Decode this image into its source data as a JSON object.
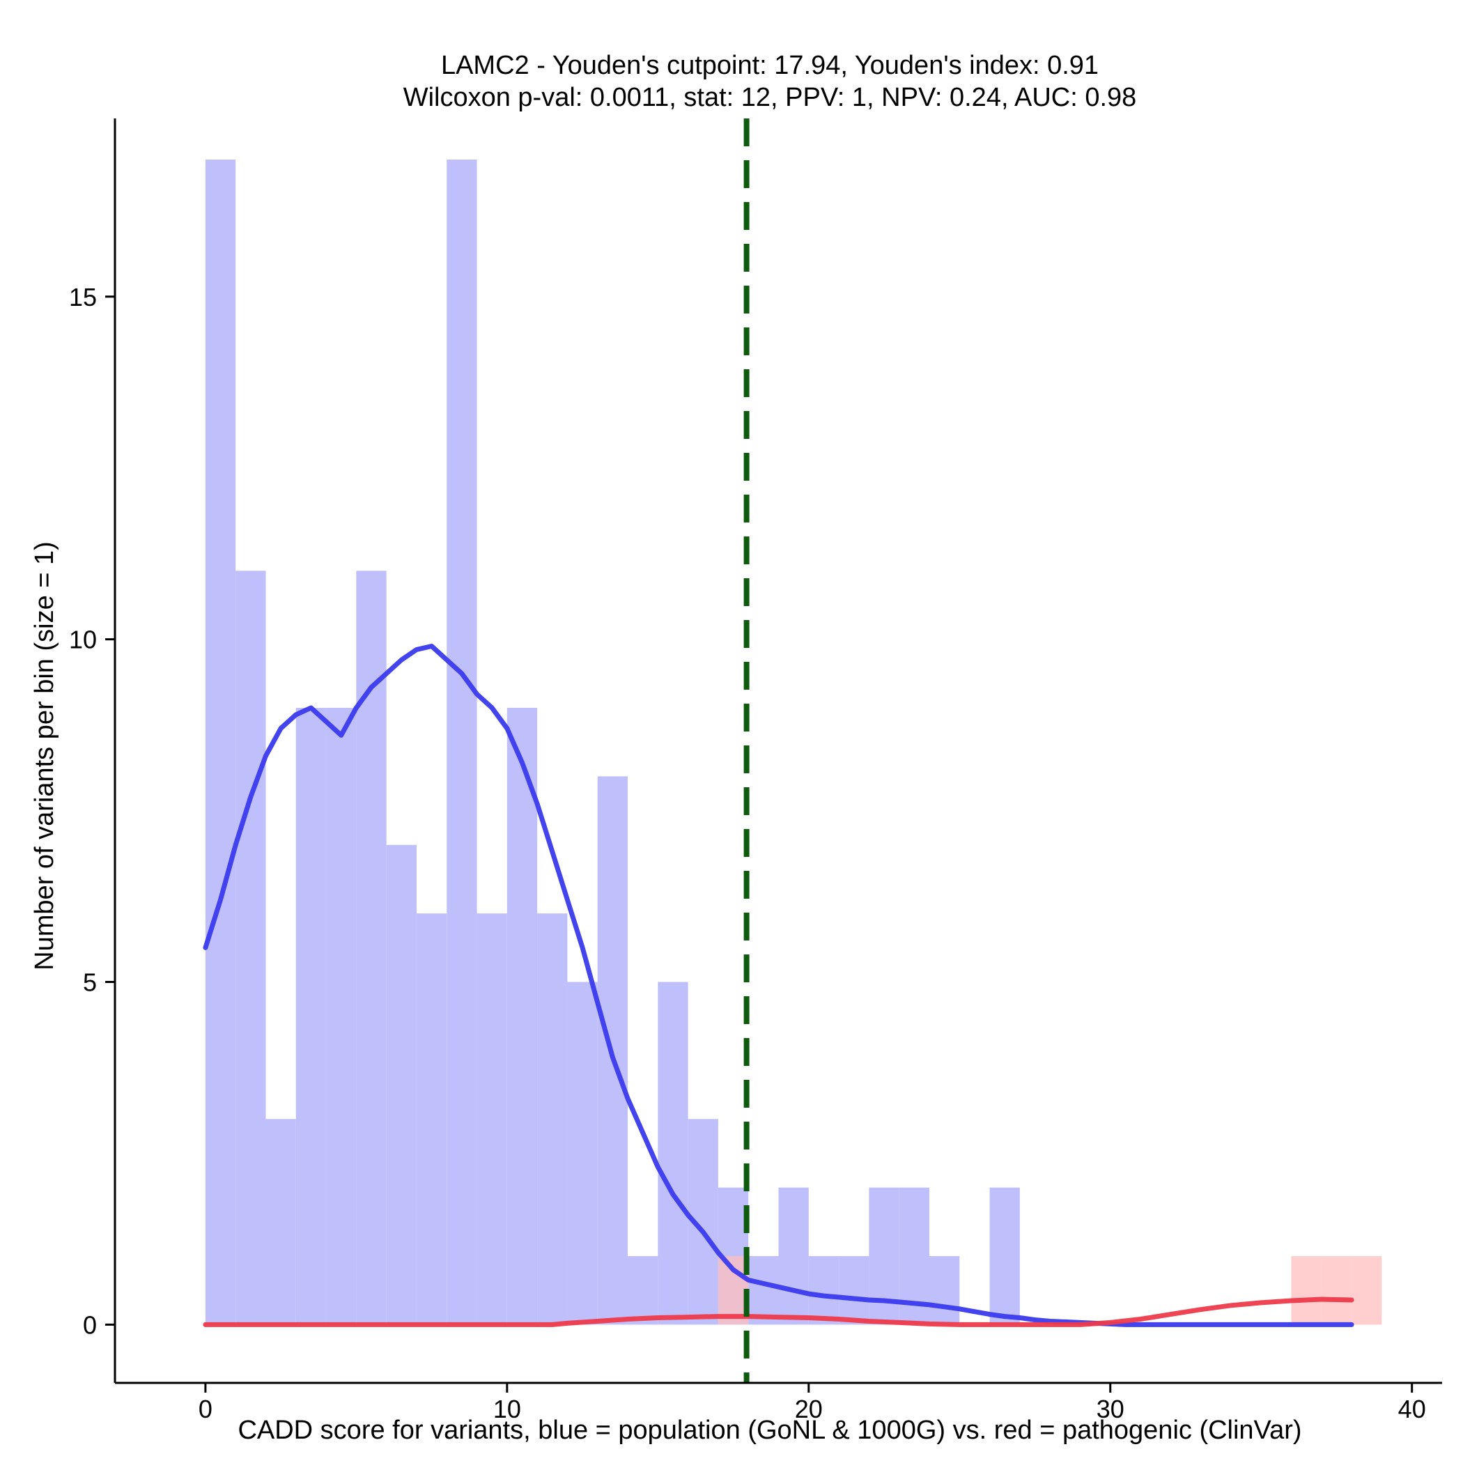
{
  "chart_data": {
    "type": "bar",
    "title_line1": "LAMC2 - Youden's cutpoint: 17.94, Youden's index: 0.91",
    "title_line2": "Wilcoxon p-val: 0.0011, stat: 12, PPV: 1, NPV: 0.24, AUC: 0.98",
    "xlabel": "CADD score for variants, blue = population (GoNL & 1000G) vs. red = pathogenic (ClinVar)",
    "ylabel": "Number of variants per bin (size = 1)",
    "xlim": [
      -3,
      41
    ],
    "ylim": [
      -0.85,
      17.6
    ],
    "x_ticks": [
      0,
      10,
      20,
      30,
      40
    ],
    "y_ticks": [
      0,
      5,
      10,
      15
    ],
    "bin_width": 1,
    "cutpoint": 17.94,
    "colors": {
      "population_bar": "#bfbffb",
      "pathogenic_bar": "#ffbfbf",
      "population_line": "#3a3aee",
      "pathogenic_line": "#ee3a4a",
      "cutpoint_line": "#0e5a0e"
    },
    "series": [
      {
        "bins": [
          {
            "x": 0,
            "count": 17
          },
          {
            "x": 1,
            "count": 11
          },
          {
            "x": 2,
            "count": 3
          },
          {
            "x": 3,
            "count": 9
          },
          {
            "x": 4,
            "count": 9
          },
          {
            "x": 5,
            "count": 11
          },
          {
            "x": 6,
            "count": 7
          },
          {
            "x": 7,
            "count": 6
          },
          {
            "x": 8,
            "count": 17
          },
          {
            "x": 9,
            "count": 6
          },
          {
            "x": 10,
            "count": 9
          },
          {
            "x": 11,
            "count": 6
          },
          {
            "x": 12,
            "count": 5
          },
          {
            "x": 13,
            "count": 8
          },
          {
            "x": 14,
            "count": 1
          },
          {
            "x": 15,
            "count": 5
          },
          {
            "x": 16,
            "count": 3
          },
          {
            "x": 17,
            "count": 2
          },
          {
            "x": 18,
            "count": 1
          },
          {
            "x": 19,
            "count": 2
          },
          {
            "x": 20,
            "count": 1
          },
          {
            "x": 21,
            "count": 1
          },
          {
            "x": 22,
            "count": 2
          },
          {
            "x": 23,
            "count": 2
          },
          {
            "x": 24,
            "count": 1
          },
          {
            "x": 26,
            "count": 2
          }
        ],
        "density_curve": [
          [
            0,
            5.5
          ],
          [
            0.5,
            6.2
          ],
          [
            1,
            7.0
          ],
          [
            1.5,
            7.7
          ],
          [
            2,
            8.3
          ],
          [
            2.5,
            8.7
          ],
          [
            3,
            8.9
          ],
          [
            3.5,
            9.0
          ],
          [
            4,
            8.8
          ],
          [
            4.5,
            8.6
          ],
          [
            5,
            9.0
          ],
          [
            5.5,
            9.3
          ],
          [
            6,
            9.5
          ],
          [
            6.5,
            9.7
          ],
          [
            7,
            9.85
          ],
          [
            7.5,
            9.9
          ],
          [
            8,
            9.7
          ],
          [
            8.5,
            9.5
          ],
          [
            9,
            9.2
          ],
          [
            9.5,
            9.0
          ],
          [
            10,
            8.7
          ],
          [
            10.5,
            8.2
          ],
          [
            11,
            7.6
          ],
          [
            11.5,
            6.9
          ],
          [
            12,
            6.2
          ],
          [
            12.5,
            5.5
          ],
          [
            13,
            4.7
          ],
          [
            13.5,
            3.9
          ],
          [
            14,
            3.3
          ],
          [
            14.5,
            2.8
          ],
          [
            15,
            2.3
          ],
          [
            15.5,
            1.9
          ],
          [
            16,
            1.6
          ],
          [
            16.5,
            1.35
          ],
          [
            17,
            1.05
          ],
          [
            17.5,
            0.8
          ],
          [
            18,
            0.65
          ],
          [
            18.5,
            0.6
          ],
          [
            19,
            0.55
          ],
          [
            19.5,
            0.5
          ],
          [
            20,
            0.45
          ],
          [
            20.5,
            0.42
          ],
          [
            21,
            0.4
          ],
          [
            21.5,
            0.38
          ],
          [
            22,
            0.36
          ],
          [
            22.5,
            0.35
          ],
          [
            23,
            0.33
          ],
          [
            23.5,
            0.31
          ],
          [
            24,
            0.29
          ],
          [
            24.5,
            0.26
          ],
          [
            25,
            0.23
          ],
          [
            25.5,
            0.19
          ],
          [
            26,
            0.15
          ],
          [
            26.5,
            0.12
          ],
          [
            27,
            0.1
          ],
          [
            27.5,
            0.07
          ],
          [
            28,
            0.05
          ],
          [
            28.5,
            0.04
          ],
          [
            29,
            0.03
          ],
          [
            29.5,
            0.02
          ],
          [
            30,
            0.01
          ],
          [
            30.5,
            0.0
          ],
          [
            31,
            0.0
          ],
          [
            32,
            0.0
          ],
          [
            34,
            0.0
          ],
          [
            36,
            0.0
          ],
          [
            38,
            0.0
          ]
        ]
      },
      {
        "bins": [
          {
            "x": 17,
            "count": 1
          },
          {
            "x": 36,
            "count": 1
          },
          {
            "x": 37,
            "count": 1
          },
          {
            "x": 38,
            "count": 1
          }
        ],
        "density_curve": [
          [
            0,
            0.0
          ],
          [
            4,
            0.0
          ],
          [
            8,
            0.0
          ],
          [
            11.5,
            0.0
          ],
          [
            12,
            0.02
          ],
          [
            13,
            0.05
          ],
          [
            14,
            0.08
          ],
          [
            15,
            0.1
          ],
          [
            16,
            0.11
          ],
          [
            17,
            0.12
          ],
          [
            18,
            0.12
          ],
          [
            19,
            0.11
          ],
          [
            20,
            0.1
          ],
          [
            21,
            0.08
          ],
          [
            22,
            0.05
          ],
          [
            23,
            0.03
          ],
          [
            24,
            0.01
          ],
          [
            25,
            0.0
          ],
          [
            27,
            0.0
          ],
          [
            29,
            0.0
          ],
          [
            30,
            0.03
          ],
          [
            31,
            0.08
          ],
          [
            32,
            0.15
          ],
          [
            33,
            0.22
          ],
          [
            34,
            0.28
          ],
          [
            35,
            0.32
          ],
          [
            36,
            0.35
          ],
          [
            37,
            0.37
          ],
          [
            38,
            0.36
          ]
        ]
      }
    ]
  }
}
